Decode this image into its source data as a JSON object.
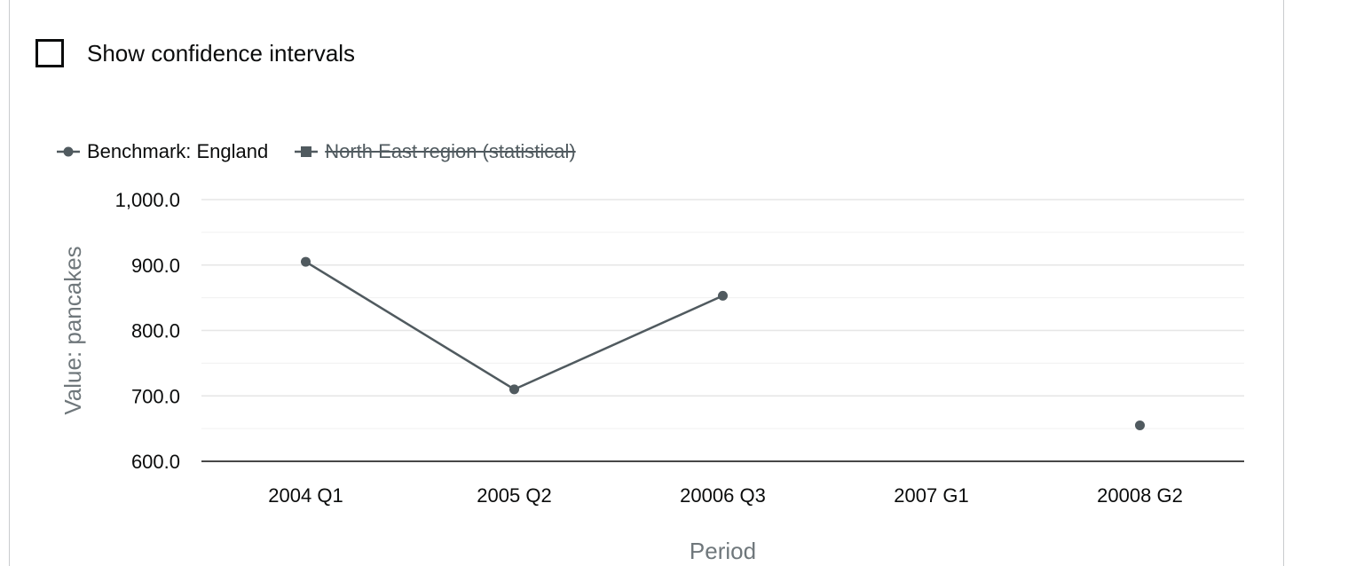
{
  "controls": {
    "confidence_label": "Show confidence intervals",
    "confidence_checked": false
  },
  "legend": [
    {
      "label": "Benchmark: England",
      "marker": "circle",
      "visible": true
    },
    {
      "label": "North East region (statistical)",
      "marker": "square",
      "visible": false
    }
  ],
  "colors": {
    "series": "#505a5f",
    "axis": "#0b0c0c",
    "grid": "#e6e6e6",
    "axis_title": "#6f777b"
  },
  "chart_data": {
    "type": "line",
    "categories": [
      "2004 Q1",
      "2005 Q2",
      "20006 Q3",
      "2007 G1",
      "20008 G2"
    ],
    "series": [
      {
        "name": "Benchmark: England",
        "values": [
          905,
          710,
          853,
          null,
          655
        ]
      }
    ],
    "xlabel": "Period",
    "ylabel": "Value: pancakes",
    "ylim": [
      600,
      1000
    ],
    "yticks": [
      "600.0",
      "700.0",
      "800.0",
      "900.0",
      "1,000.0"
    ],
    "ytick_values": [
      600,
      700,
      800,
      900,
      1000
    ],
    "grid": true
  }
}
